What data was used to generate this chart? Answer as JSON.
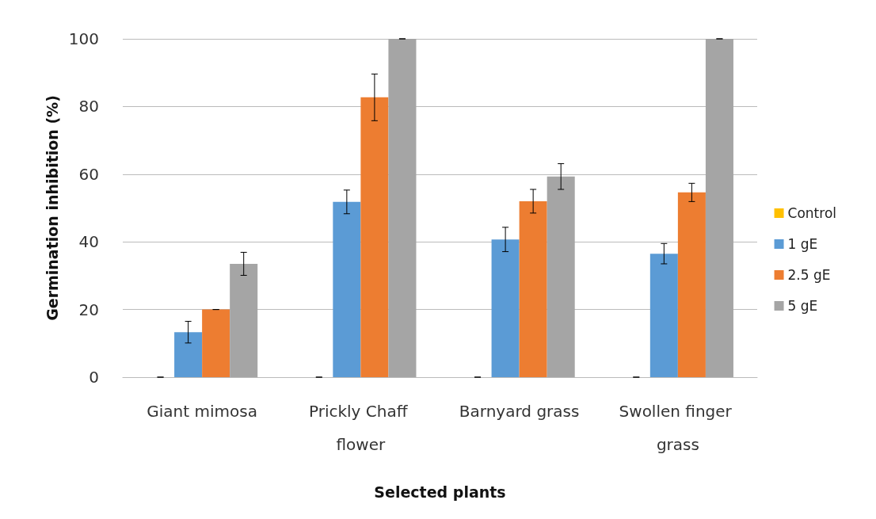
{
  "chart_data": {
    "type": "bar",
    "xlabel": "Selected plants",
    "ylabel": "Germination inhibition (%)",
    "categories": [
      "Giant mimosa",
      "Prickly Chaff flower",
      "Barnyard grass",
      "Swollen finger grass"
    ],
    "series": [
      {
        "name": "Control",
        "color": "#ffc000",
        "values": [
          0,
          0,
          0,
          0
        ],
        "errors": [
          0,
          0,
          0,
          0
        ]
      },
      {
        "name": "1 gE",
        "color": "#5b9bd5",
        "values": [
          13.3,
          51.8,
          40.7,
          36.5
        ],
        "errors": [
          3.2,
          3.5,
          3.6,
          3
        ]
      },
      {
        "name": "2.5 gE",
        "color": "#ed7d31",
        "values": [
          20,
          82.7,
          52,
          54.6
        ],
        "errors": [
          0,
          6.9,
          3.5,
          2.7
        ]
      },
      {
        "name": "5 gE",
        "color": "#a5a5a5",
        "values": [
          33.5,
          100,
          59.3,
          100
        ],
        "errors": [
          3.4,
          0,
          3.8,
          0
        ]
      }
    ],
    "ylim": [
      0,
      100
    ],
    "yticks": [
      0,
      20,
      40,
      60,
      80,
      100
    ],
    "grid": "y",
    "legend": "right"
  }
}
